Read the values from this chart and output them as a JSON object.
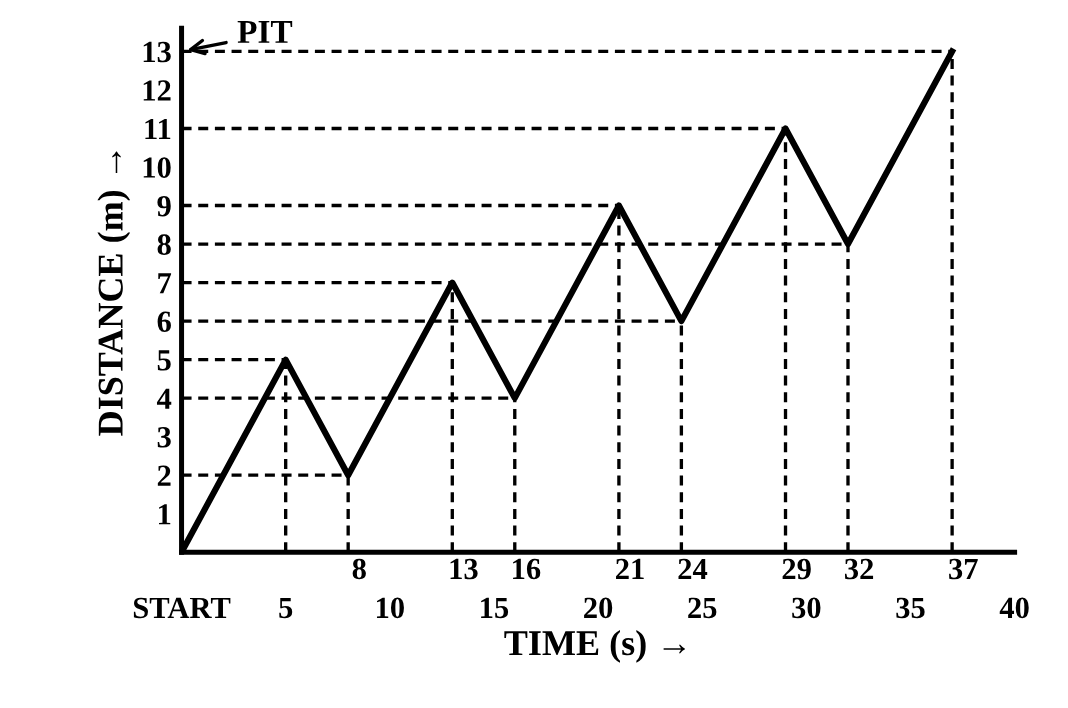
{
  "chart_data": {
    "type": "line",
    "xlabel": "TIME (s) →",
    "ylabel": "DISTANCE (m) →",
    "x": [
      0,
      5,
      8,
      13,
      16,
      21,
      24,
      29,
      32,
      37
    ],
    "series": [
      {
        "color": "#000000",
        "values": [
          0,
          5,
          2,
          7,
          4,
          9,
          6,
          11,
          8,
          13
        ]
      }
    ],
    "xlim": [
      0,
      40
    ],
    "ylim": [
      0,
      13.6
    ],
    "xticks": [
      {
        "value": 0,
        "label": "START"
      },
      5,
      10,
      15,
      20,
      25,
      30,
      35,
      40
    ],
    "x2lim": [
      0,
      40
    ],
    "x2ticks": [
      8,
      13,
      16,
      21,
      24,
      29,
      32,
      37
    ],
    "yticks": [
      1,
      2,
      3,
      4,
      5,
      6,
      7,
      8,
      9,
      10,
      11,
      12,
      13
    ],
    "ref_lines": [
      {
        "axis": "x",
        "value": 5,
        "line_style": "dashed"
      },
      {
        "axis": "x",
        "value": 8,
        "line_style": "dashed"
      },
      {
        "axis": "x",
        "value": 13,
        "line_style": "dashed"
      },
      {
        "axis": "x",
        "value": 16,
        "line_style": "dashed"
      },
      {
        "axis": "x",
        "value": 21,
        "line_style": "dashed"
      },
      {
        "axis": "x",
        "value": 24,
        "line_style": "dashed"
      },
      {
        "axis": "x",
        "value": 29,
        "line_style": "dashed"
      },
      {
        "axis": "x",
        "value": 32,
        "line_style": "dashed"
      },
      {
        "axis": "x",
        "value": 37,
        "line_style": "dashed"
      },
      {
        "axis": "y",
        "value": 2,
        "line_style": "dashed"
      },
      {
        "axis": "y",
        "value": 4,
        "line_style": "dashed"
      },
      {
        "axis": "y",
        "value": 5,
        "line_style": "dashed"
      },
      {
        "axis": "y",
        "value": 6,
        "line_style": "dashed"
      },
      {
        "axis": "y",
        "value": 7,
        "line_style": "dashed"
      },
      {
        "axis": "y",
        "value": 8,
        "line_style": "dashed"
      },
      {
        "axis": "y",
        "value": 9,
        "line_style": "dashed"
      },
      {
        "axis": "y",
        "value": 11,
        "line_style": "dashed"
      },
      {
        "axis": "y",
        "value": 13,
        "line_style": "dashed"
      }
    ],
    "annotations": [
      {
        "text": "PIT",
        "x": 0,
        "y": 13
      }
    ],
    "legend": false,
    "marker": "none",
    "line_style": "solid"
  }
}
